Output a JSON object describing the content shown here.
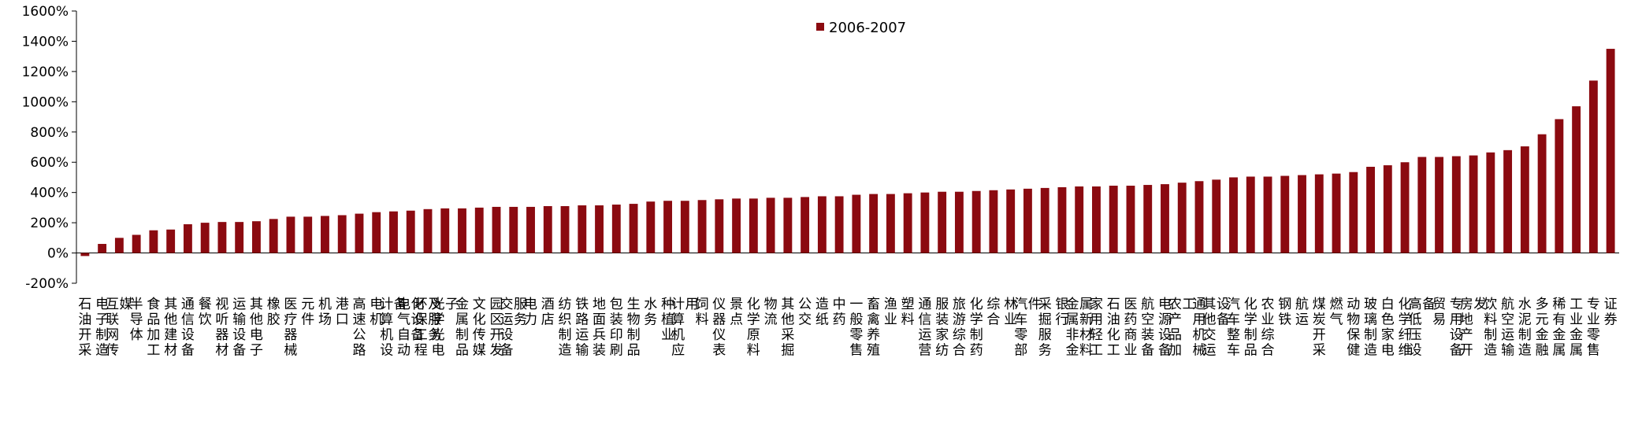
{
  "chart_data": {
    "type": "bar",
    "legend_position": "top-center",
    "grid": false,
    "ylim": [
      -200,
      1600
    ],
    "yticks": [
      "-200%",
      "0%",
      "200%",
      "400%",
      "600%",
      "800%",
      "1000%",
      "1200%",
      "1400%",
      "1600%"
    ],
    "ytick_values": [
      -200,
      0,
      200,
      400,
      600,
      800,
      1000,
      1200,
      1400,
      1600
    ],
    "categories": [
      "石油开采",
      "电子制造",
      "互联网传媒",
      "半导体",
      "食品加工",
      "其他建材",
      "通信设备",
      "餐饮",
      "视听器材",
      "运输设备",
      "其他电子",
      "橡胶",
      "医疗器械",
      "元件",
      "机场",
      "港口",
      "高速公路",
      "电机",
      "计算机设备",
      "电气自动化设备",
      "环保工程及服务",
      "光学光电子",
      "金属制品",
      "文化传媒",
      "园区开发",
      "交运设备服务",
      "电力",
      "酒店",
      "纺织制造",
      "铁路运输",
      "地面兵装",
      "包装印刷",
      "生物制品",
      "水务",
      "种植业",
      "计算机应用",
      "饲料",
      "仪器仪表",
      "景点",
      "化学原料",
      "物流",
      "其他采掘",
      "公交",
      "造纸",
      "中药",
      "一般零售",
      "畜禽养殖",
      "渔业",
      "塑料",
      "通信运营",
      "服装家纺",
      "旅游综合",
      "化学制药",
      "综合",
      "林业",
      "汽车零部件",
      "采掘服务",
      "银行",
      "金属非金属新材料",
      "家用轻工",
      "石油化工",
      "医药商业",
      "航空装备",
      "电源设备",
      "农产品加工",
      "通用机械",
      "其他交运设备",
      "汽车整车",
      "化学制品",
      "农业综合",
      "钢铁",
      "航运",
      "煤炭开采",
      "燃气",
      "动物保健",
      "玻璃制造",
      "白色家电",
      "化学纤维",
      "高低压设备",
      "贸易",
      "专用设备",
      "房地产开发",
      "饮料制造",
      "航空运输",
      "水泥制造",
      "多元金融",
      "稀有金属",
      "工业金属",
      "专业零售",
      "证券"
    ],
    "series": [
      {
        "name": "2006-2007",
        "color": "#8b0a10",
        "values": [
          -20,
          60,
          100,
          120,
          150,
          155,
          190,
          200,
          205,
          205,
          210,
          225,
          240,
          240,
          245,
          250,
          260,
          270,
          275,
          280,
          290,
          295,
          295,
          300,
          305,
          305,
          305,
          310,
          310,
          315,
          315,
          320,
          325,
          340,
          345,
          345,
          350,
          355,
          360,
          360,
          365,
          365,
          370,
          375,
          375,
          385,
          390,
          390,
          395,
          400,
          405,
          405,
          410,
          415,
          420,
          425,
          430,
          435,
          440,
          440,
          445,
          445,
          450,
          455,
          465,
          475,
          485,
          500,
          505,
          505,
          510,
          515,
          520,
          525,
          535,
          570,
          580,
          600,
          635,
          635,
          640,
          645,
          665,
          680,
          705,
          785,
          885,
          970,
          1140,
          1350
        ]
      }
    ]
  }
}
